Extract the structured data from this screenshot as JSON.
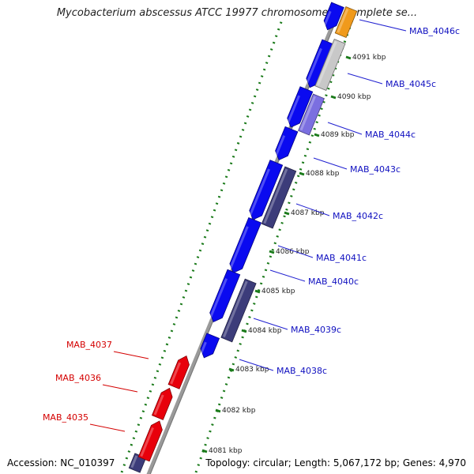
{
  "title": "Mycobacterium abscessus ATCC 19977 chromosome 1, complete se...",
  "footer": {
    "accession": "Accession: NC_010397",
    "topology": "Topology: circular; Length: 5,067,172 bp; Genes: 4,970"
  },
  "colors": {
    "forward_gene": "#e8000b",
    "reverse_gene": "#0a0af0",
    "dark_gene": "#3c3c7a",
    "light_purple_gene": "#7b6fe0",
    "grey_gene": "#c8c8c8",
    "orange_gene": "#f09a1c",
    "tick_green": "#1a7a1a",
    "backbone": "#8c8c8c",
    "label_blue": "#1010c0",
    "label_red": "#d40000"
  },
  "scale_labels": [
    "4091 kbp",
    "4090 kbp",
    "4089 kbp",
    "4088 kbp",
    "4087 kbp",
    "4086 kbp",
    "4085 kbp",
    "4084 kbp",
    "4083 kbp",
    "4082 kbp",
    "4081 kbp"
  ],
  "gene_labels_right": [
    "MAB_4046c",
    "MAB_4045c",
    "MAB_4044c",
    "MAB_4043c",
    "MAB_4042c",
    "MAB_4041c",
    "MAB_4040c",
    "MAB_4039c",
    "MAB_4038c"
  ],
  "gene_labels_left": [
    "MAB_4037",
    "MAB_4036",
    "MAB_4035"
  ]
}
